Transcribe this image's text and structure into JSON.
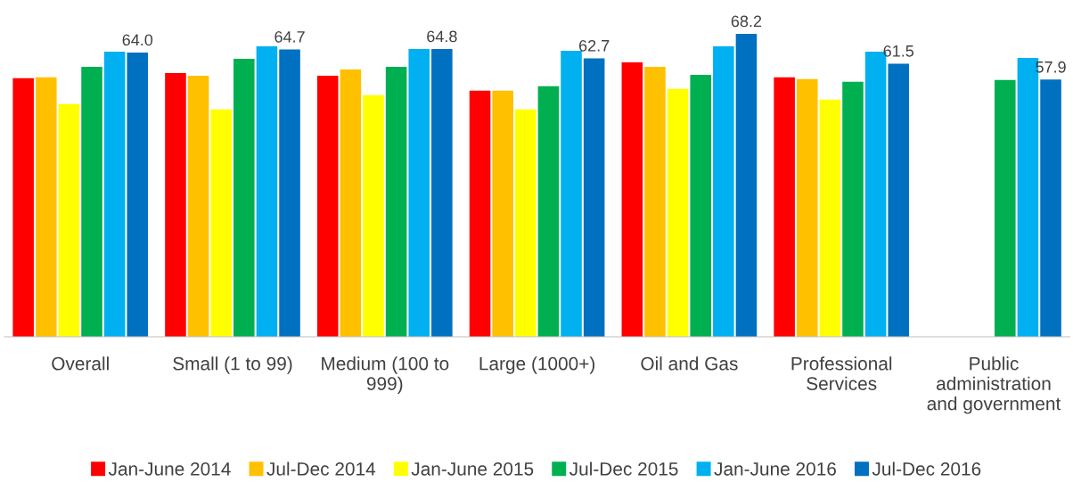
{
  "chart_data": {
    "type": "bar",
    "categories": [
      "Overall",
      "Small (1 to 99)",
      "Medium (100 to 999)",
      "Large (1000+)",
      "Oil and Gas",
      "Professional Services",
      "Public administration and government"
    ],
    "series": [
      {
        "name": "Jan-June 2014",
        "color": "#ff0000",
        "values": [
          58.2,
          59.4,
          58.8,
          55.4,
          61.8,
          58.4,
          null
        ]
      },
      {
        "name": "Jul-Dec 2014",
        "color": "#ffc000",
        "values": [
          58.4,
          58.8,
          60.2,
          55.4,
          60.8,
          58.0,
          null
        ]
      },
      {
        "name": "Jan-June 2015",
        "color": "#ffff00",
        "values": [
          52.4,
          51.2,
          54.4,
          51.2,
          55.8,
          53.4,
          null
        ]
      },
      {
        "name": "Jul-Dec 2015",
        "color": "#00b050",
        "values": [
          60.8,
          62.6,
          60.8,
          56.4,
          59.0,
          57.4,
          57.8
        ]
      },
      {
        "name": "Jan-June 2016",
        "color": "#00b0f0",
        "values": [
          64.2,
          65.4,
          64.8,
          64.4,
          65.4,
          64.2,
          62.8
        ]
      },
      {
        "name": "Jul-Dec 2016",
        "color": "#0070c0",
        "values": [
          64.0,
          64.7,
          64.8,
          62.7,
          68.2,
          61.5,
          57.9
        ],
        "value_labels": [
          "64.0",
          "64.7",
          "64.8",
          "62.7",
          "68.2",
          "61.5",
          "57.9"
        ]
      }
    ],
    "legend": "bottom",
    "grid": false
  }
}
